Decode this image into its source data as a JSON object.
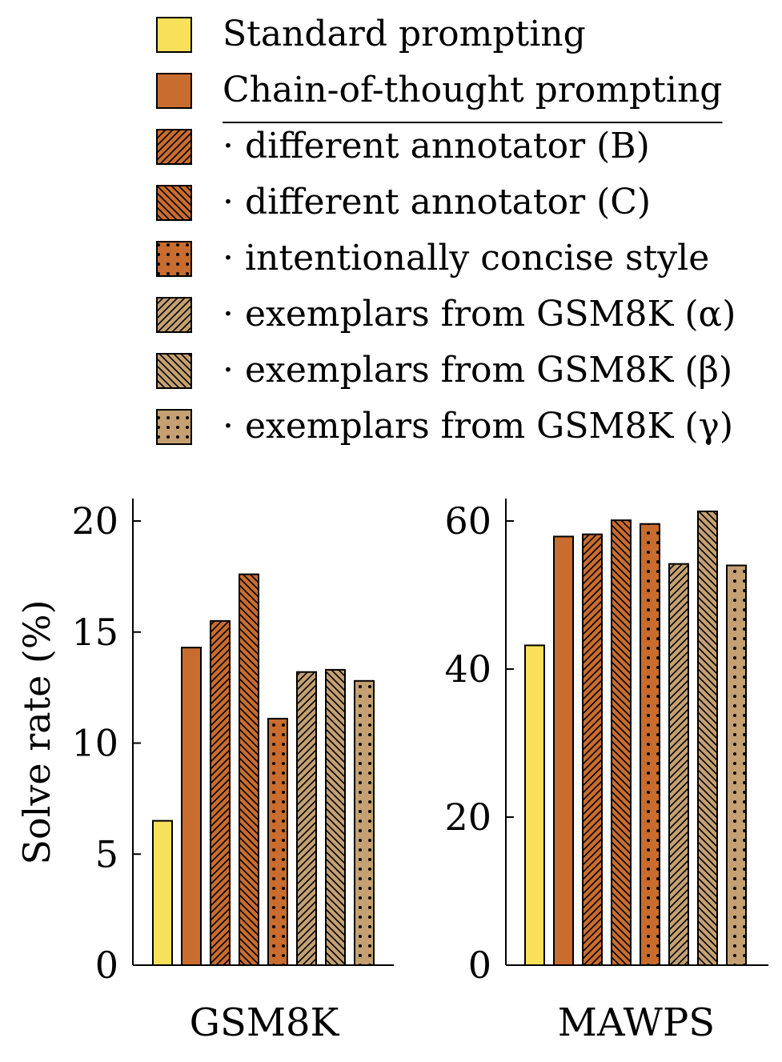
{
  "chart_data": {
    "type": "bar",
    "ylabel": "Solve rate (%)",
    "colors": {
      "standard": "#f9e05a",
      "cot": "#c86c30",
      "gsm8k_exemplars": "#c4a072"
    },
    "legend": [
      {
        "label": "Standard prompting",
        "color": "#f9e05a",
        "pattern": "none"
      },
      {
        "label": "Chain-of-thought prompting",
        "color": "#c86c30",
        "pattern": "none"
      },
      {
        "label": "· different annotator (B)",
        "color": "#c86c30",
        "pattern": "diag-up"
      },
      {
        "label": "· different annotator (C)",
        "color": "#c86c30",
        "pattern": "diag-down"
      },
      {
        "label": "· intentionally concise style",
        "color": "#c86c30",
        "pattern": "dots"
      },
      {
        "label": "· exemplars from GSM8K (α)",
        "color": "#c4a072",
        "pattern": "diag-up"
      },
      {
        "label": "· exemplars from GSM8K (β)",
        "color": "#c4a072",
        "pattern": "diag-down"
      },
      {
        "label": "· exemplars from GSM8K (γ)",
        "color": "#c4a072",
        "pattern": "dots"
      }
    ],
    "panels": [
      {
        "title": "GSM8K",
        "ylim": [
          0,
          20
        ],
        "yticks": [
          0,
          5,
          10,
          15,
          20
        ],
        "values": [
          6.5,
          14.3,
          15.5,
          17.6,
          11.1,
          13.2,
          13.3,
          12.8
        ]
      },
      {
        "title": "MAWPS",
        "ylim": [
          0,
          60
        ],
        "yticks": [
          0,
          20,
          40,
          60
        ],
        "values": [
          43.2,
          57.9,
          58.2,
          60.1,
          59.6,
          54.2,
          61.3,
          54.0
        ]
      }
    ]
  }
}
